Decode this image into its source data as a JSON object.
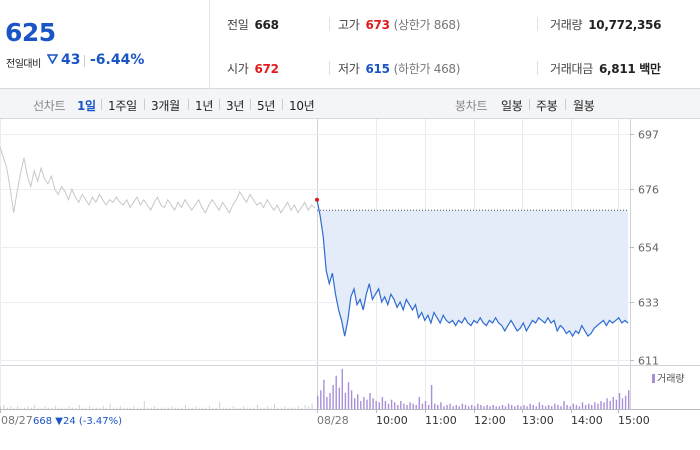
{
  "quote": {
    "current_price": "625",
    "change_label": "전일대비",
    "change_value": "43",
    "change_pct": "-6.44%",
    "prev_close_label": "전일",
    "prev_close": "668",
    "open_label": "시가",
    "open": "672",
    "high_label": "고가",
    "high": "673",
    "upper_limit": "(상한가 868)",
    "low_label": "저가",
    "low": "615",
    "lower_limit": "(하한가 468)",
    "volume_label": "거래량",
    "volume": "10,772,356",
    "trade_value_label": "거래대금",
    "trade_value": "6,811 백만"
  },
  "line_tabs": {
    "label": "선차트",
    "items": [
      {
        "label": "1일",
        "active": true
      },
      {
        "label": "1주일",
        "active": false
      },
      {
        "label": "3개월",
        "active": false
      },
      {
        "label": "1년",
        "active": false
      },
      {
        "label": "3년",
        "active": false
      },
      {
        "label": "5년",
        "active": false
      },
      {
        "label": "10년",
        "active": false
      }
    ]
  },
  "candle_tabs": {
    "label": "봉차트",
    "items": [
      {
        "label": "일봉"
      },
      {
        "label": "주봉"
      },
      {
        "label": "월봉"
      }
    ]
  },
  "colors": {
    "price_blue": "#1a54c5",
    "up_red": "#e01b1b",
    "line_today": "#2f6bd0",
    "area_fill": "#e3ecf8",
    "line_prev_day": "#c8c8c8",
    "volume_bar": "#a98fd8"
  },
  "chart_data": {
    "type": "line",
    "y_ticks": [
      697,
      676,
      654,
      633,
      611
    ],
    "ylim": [
      609,
      702
    ],
    "reference_price": 668,
    "x_labels": [
      "08/27",
      "08/28",
      "10:00",
      "11:00",
      "12:00",
      "13:00",
      "14:00",
      "15:00"
    ],
    "prev_day_summary": "668 ▼24 (-3.47%)",
    "volume_legend": "거래량",
    "prev_day_series": {
      "date": "08/27",
      "values": [
        692,
        688,
        684,
        676,
        667,
        675,
        682,
        688,
        681,
        677,
        683,
        679,
        684,
        680,
        678,
        681,
        676,
        674,
        677,
        675,
        672,
        676,
        673,
        671,
        674,
        672,
        670,
        673,
        671,
        674,
        672,
        670,
        672,
        671,
        673,
        671,
        670,
        672,
        669,
        671,
        673,
        670,
        672,
        670,
        668,
        671,
        673,
        670,
        669,
        672,
        670,
        668,
        671,
        669,
        672,
        670,
        668,
        670,
        672,
        669,
        667,
        670,
        672,
        670,
        668,
        671,
        669,
        667,
        670,
        672,
        675,
        673,
        671,
        674,
        672,
        670,
        671,
        669,
        672,
        670,
        668,
        670,
        667,
        669,
        671,
        668,
        670,
        667,
        669,
        671,
        668,
        670,
        669
      ]
    },
    "today_series": {
      "date": "08/28",
      "values": [
        672,
        666,
        658,
        645,
        640,
        644,
        636,
        630,
        626,
        620,
        626,
        635,
        638,
        632,
        634,
        630,
        636,
        640,
        634,
        636,
        638,
        633,
        635,
        632,
        636,
        634,
        631,
        633,
        630,
        634,
        632,
        630,
        632,
        627,
        629,
        626,
        628,
        625,
        629,
        627,
        625,
        628,
        626,
        625,
        626,
        624,
        626,
        625,
        627,
        625,
        624,
        626,
        625,
        627,
        625,
        624,
        626,
        625,
        627,
        625,
        624,
        622,
        624,
        626,
        624,
        622,
        623,
        625,
        622,
        624,
        626,
        625,
        627,
        626,
        625,
        627,
        625,
        626,
        622,
        624,
        623,
        621,
        622,
        620,
        622,
        621,
        624,
        622,
        620,
        621,
        623,
        624,
        625,
        626,
        624,
        626,
        625,
        626,
        627,
        625,
        626,
        625
      ]
    },
    "volume": {
      "prev_day": [
        2,
        3,
        1,
        2,
        1,
        2,
        1,
        1,
        2,
        1,
        3,
        1,
        1,
        2,
        1,
        1,
        2,
        1,
        1,
        1,
        2,
        1,
        1,
        3,
        1,
        1,
        2,
        1,
        1,
        1,
        2,
        1,
        4,
        1,
        1,
        2,
        1,
        1,
        1,
        2,
        1,
        1,
        6,
        1,
        1,
        2,
        1,
        1,
        1,
        1,
        2,
        1,
        1,
        1,
        3,
        1,
        1,
        2,
        1,
        1,
        1,
        2,
        1,
        1,
        5,
        1,
        1,
        1,
        2,
        1,
        1,
        2,
        1,
        1,
        1,
        3,
        1,
        1,
        2,
        1,
        4,
        1,
        1,
        2,
        1,
        1,
        1,
        2,
        1,
        3,
        2,
        4
      ],
      "today": [
        10,
        14,
        22,
        9,
        12,
        18,
        25,
        16,
        30,
        12,
        20,
        14,
        8,
        11,
        6,
        9,
        7,
        12,
        8,
        6,
        5,
        9,
        6,
        4,
        7,
        5,
        3,
        6,
        4,
        3,
        5,
        4,
        3,
        9,
        4,
        6,
        3,
        18,
        4,
        3,
        5,
        2,
        3,
        4,
        2,
        3,
        2,
        4,
        3,
        2,
        3,
        2,
        4,
        3,
        2,
        3,
        2,
        3,
        2,
        2,
        3,
        2,
        4,
        3,
        2,
        3,
        2,
        3,
        2,
        4,
        3,
        2,
        5,
        3,
        2,
        3,
        2,
        4,
        3,
        2,
        6,
        3,
        2,
        4,
        3,
        2,
        5,
        3,
        4,
        3,
        5,
        4,
        6,
        5,
        8,
        6,
        9,
        7,
        12,
        8,
        10,
        14
      ]
    }
  }
}
